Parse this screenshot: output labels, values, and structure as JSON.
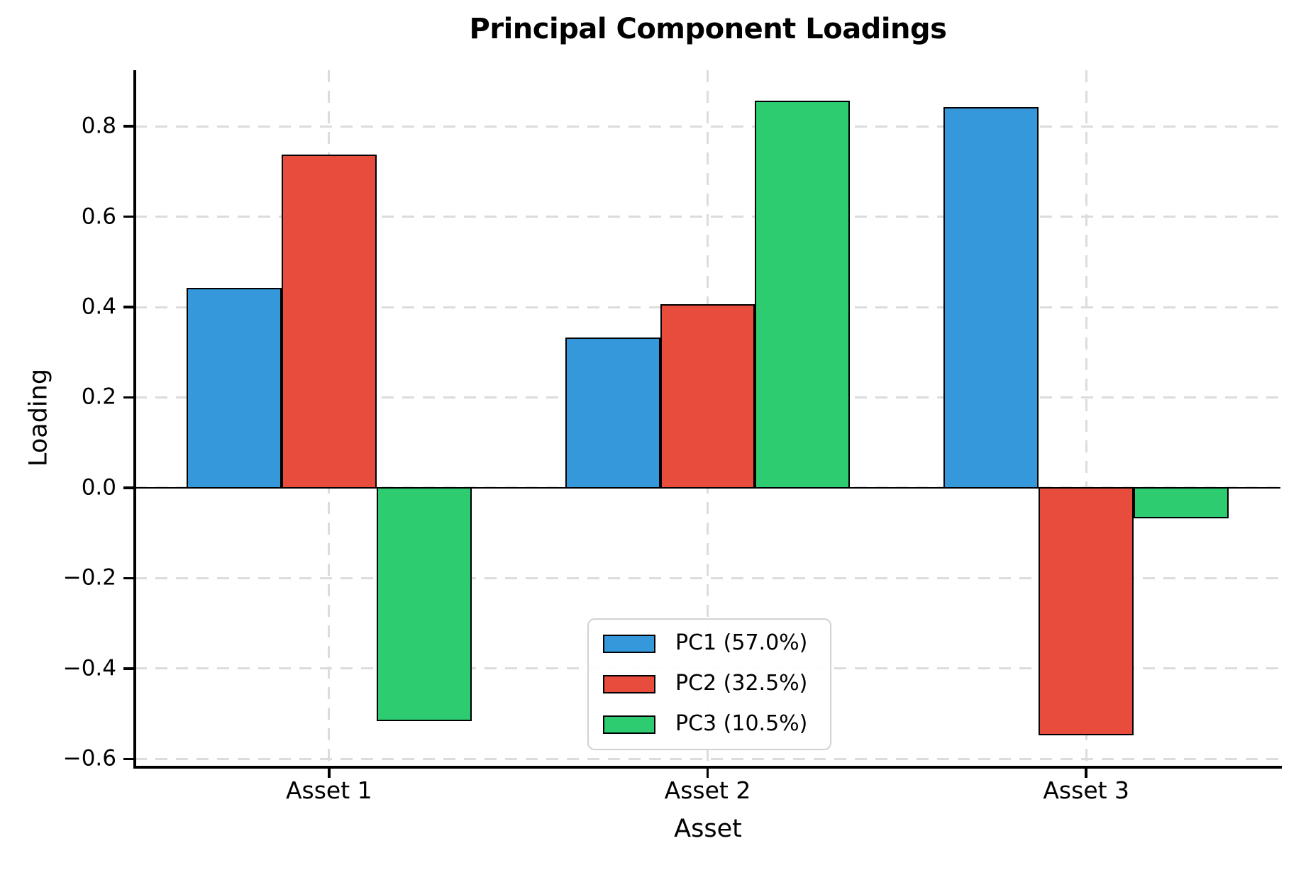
{
  "chart_data": {
    "type": "bar",
    "title": "Principal Component Loadings",
    "xlabel": "Asset",
    "ylabel": "Loading",
    "categories": [
      "Asset 1",
      "Asset 2",
      "Asset 3"
    ],
    "series": [
      {
        "name": "PC1 (57.0%)",
        "color": "#3498db",
        "values": [
          0.44,
          0.33,
          0.84
        ]
      },
      {
        "name": "PC2 (32.5%)",
        "color": "#e74c3c",
        "values": [
          0.735,
          0.405,
          -0.545
        ]
      },
      {
        "name": "PC3 (10.5%)",
        "color": "#2ecc71",
        "values": [
          -0.515,
          0.855,
          -0.065
        ]
      }
    ],
    "yticks": [
      {
        "value": 0.8,
        "label": "0.8"
      },
      {
        "value": 0.6,
        "label": "0.6"
      },
      {
        "value": 0.4,
        "label": "0.4"
      },
      {
        "value": 0.2,
        "label": "0.2"
      },
      {
        "value": 0.0,
        "label": "0.0"
      },
      {
        "value": -0.2,
        "label": "−0.2"
      },
      {
        "value": -0.4,
        "label": "−0.4"
      },
      {
        "value": -0.6,
        "label": "−0.6"
      }
    ],
    "ylim": [
      -0.615,
      0.924
    ],
    "xlim": [
      -0.513,
      2.513
    ],
    "bar_width": 0.251,
    "bar_edge_color": "#000000",
    "grid": "dashed",
    "grid_color": "#dcdcdc",
    "zero_line_color": "#000000",
    "legend_position": "lower center",
    "background": "#ffffff"
  }
}
